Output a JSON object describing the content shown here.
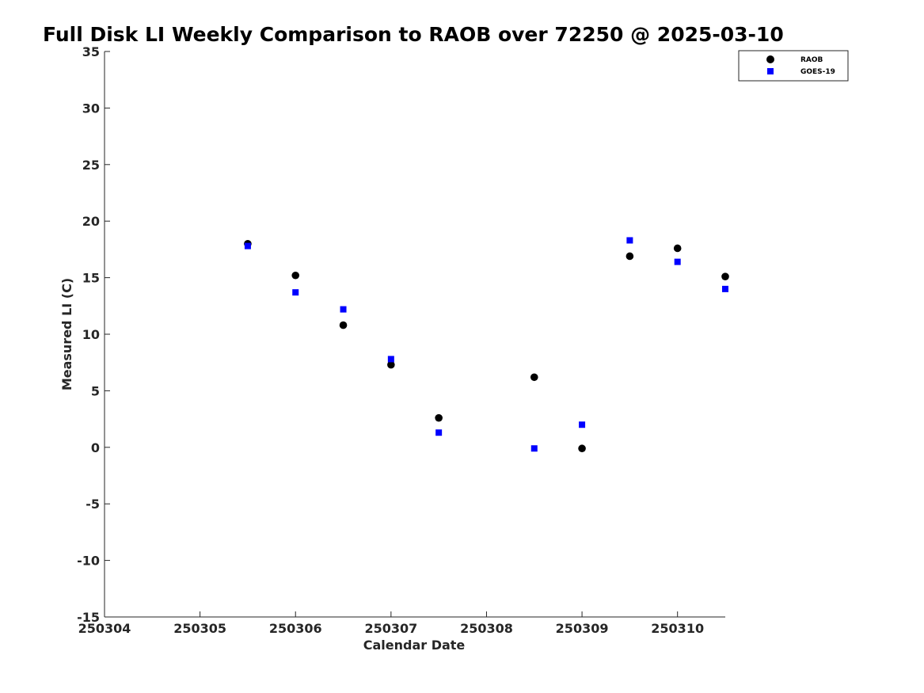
{
  "chart_data": {
    "type": "scatter",
    "title": "Full Disk LI Weekly Comparison to RAOB over 72250 @ 2025-03-10",
    "xlabel": "Calendar Date",
    "ylabel": "Measured LI (C)",
    "xlim": [
      250304,
      250310.5
    ],
    "ylim": [
      -15,
      35
    ],
    "xticks": [
      250304,
      250305,
      250306,
      250307,
      250308,
      250309,
      250310
    ],
    "xtick_labels": [
      "250304",
      "250305",
      "250306",
      "250307",
      "250308",
      "250309",
      "250310"
    ],
    "yticks": [
      35,
      30,
      25,
      20,
      15,
      10,
      5,
      0,
      -5,
      -10,
      -15
    ],
    "ytick_labels": [
      "35",
      "30",
      "25",
      "20",
      "15",
      "10",
      "5",
      "0",
      "-5",
      "-10",
      "-15"
    ],
    "grid": false,
    "legend_position": "top-right",
    "series": [
      {
        "name": "RAOB",
        "marker": "circle",
        "color": "#000000",
        "x": [
          250305.5,
          250306,
          250306.5,
          250307,
          250307.5,
          250308.5,
          250309,
          250309.5,
          250310,
          250310.5
        ],
        "y": [
          18.0,
          15.2,
          10.8,
          7.3,
          2.6,
          6.2,
          -0.1,
          16.9,
          17.6,
          15.1
        ]
      },
      {
        "name": "GOES-19",
        "marker": "square",
        "color": "#0000ff",
        "x": [
          250305.5,
          250306,
          250306.5,
          250307,
          250307.5,
          250308.5,
          250309,
          250309.5,
          250310,
          250310.5
        ],
        "y": [
          17.8,
          13.7,
          12.2,
          7.8,
          1.3,
          -0.1,
          2.0,
          18.3,
          16.4,
          14.0
        ]
      }
    ]
  }
}
